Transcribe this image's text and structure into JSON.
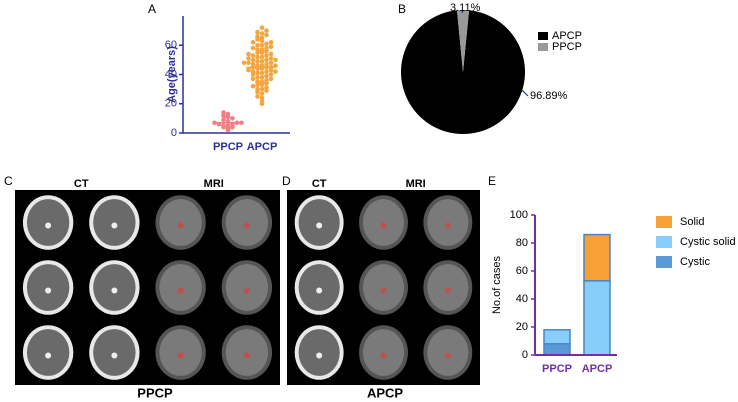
{
  "panel_labels": [
    "A",
    "B",
    "C",
    "D",
    "E"
  ],
  "chart_data": [
    {
      "type": "strip",
      "ylabel": "Age(years)",
      "ylim": [
        0,
        80
      ],
      "yticks": [
        0,
        20,
        40,
        60
      ],
      "series": [
        {
          "name": "PPCP",
          "color": "#f07f86",
          "mean": 7,
          "sd": 3.5,
          "values": [
            2,
            3,
            4,
            4,
            5,
            5,
            6,
            6,
            7,
            7,
            7,
            8,
            9,
            10,
            11,
            12,
            13,
            14
          ]
        },
        {
          "name": "APCP",
          "color": "#f5a53f",
          "mean": 45,
          "sd": 11,
          "values": [
            20,
            22,
            24,
            25,
            27,
            28,
            29,
            30,
            30,
            31,
            32,
            33,
            33,
            34,
            35,
            35,
            36,
            37,
            37,
            38,
            38,
            39,
            40,
            40,
            41,
            41,
            42,
            42,
            43,
            43,
            44,
            44,
            45,
            45,
            45,
            46,
            46,
            47,
            47,
            48,
            48,
            49,
            49,
            50,
            50,
            51,
            51,
            52,
            52,
            53,
            53,
            54,
            54,
            55,
            55,
            56,
            57,
            57,
            58,
            58,
            59,
            60,
            60,
            61,
            62,
            62,
            63,
            64,
            65,
            66,
            67,
            68,
            69,
            70,
            72,
            46,
            44,
            48,
            50,
            42
          ]
        }
      ]
    },
    {
      "type": "pie",
      "categories": [
        "APCP",
        "PPCP"
      ],
      "values": [
        96.89,
        3.11
      ],
      "value_labels": [
        "96.89%",
        "3.11%"
      ],
      "colors": [
        "#000000",
        "#999999"
      ],
      "legend": "right"
    },
    {
      "type": "stacked-bar",
      "ylabel": "No.of cases",
      "categories": [
        "PPCP",
        "APCP"
      ],
      "ylim": [
        0,
        100
      ],
      "yticks": [
        0,
        20,
        40,
        60,
        80,
        100
      ],
      "series": [
        {
          "name": "Cystic",
          "color": "#5b9bd5",
          "values": [
            8,
            0
          ]
        },
        {
          "name": "Cystic solid",
          "color": "#87cefa",
          "values": [
            10,
            53
          ]
        },
        {
          "name": "Solid",
          "color": "#f7a035",
          "values": [
            0,
            33
          ]
        }
      ],
      "legend": "right"
    }
  ],
  "image_panels": [
    {
      "headers": [
        "CT",
        "MRI"
      ],
      "caption": "PPCP"
    },
    {
      "headers": [
        "CT",
        "MRI"
      ],
      "caption": "APCP"
    }
  ]
}
